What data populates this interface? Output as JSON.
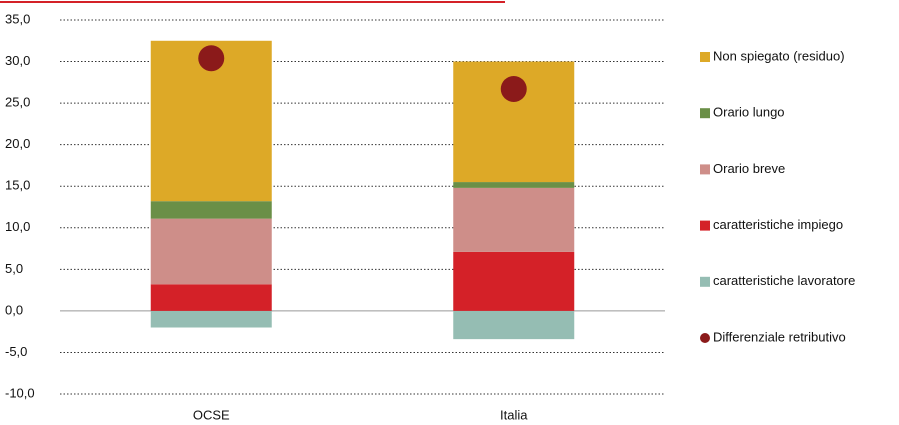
{
  "chart_data": {
    "type": "bar",
    "stacked": true,
    "categories": [
      "OCSE",
      "Italia"
    ],
    "series": [
      {
        "name": "caratteristiche lavoratore",
        "color": "#95bdb3",
        "values": [
          -2.0,
          -3.4
        ]
      },
      {
        "name": "caratteristiche impiego",
        "color": "#d42128",
        "values": [
          3.2,
          7.1
        ]
      },
      {
        "name": "Orario breve",
        "color": "#ce8e89",
        "values": [
          7.9,
          7.7
        ]
      },
      {
        "name": "Orario lungo",
        "color": "#6a8f47",
        "values": [
          2.1,
          0.7
        ]
      },
      {
        "name": "Non spiegato (residuo)",
        "color": "#dda927",
        "values": [
          19.3,
          14.5
        ]
      }
    ],
    "dots": {
      "name": "Differenziale retributivo",
      "color": "#8b1a1a",
      "values": [
        30.4,
        26.7
      ]
    },
    "ylim": [
      -10,
      35
    ],
    "yticks": [
      {
        "value": -10,
        "label": "-10,0"
      },
      {
        "value": -5,
        "label": "-5,0"
      },
      {
        "value": 0,
        "label": "0,0"
      },
      {
        "value": 5,
        "label": "5,0"
      },
      {
        "value": 10,
        "label": "10,0"
      },
      {
        "value": 15,
        "label": "15,0"
      },
      {
        "value": 20,
        "label": "20,0"
      },
      {
        "value": 25,
        "label": "25,0"
      },
      {
        "value": 30,
        "label": "30,0"
      },
      {
        "value": 35,
        "label": "35,0"
      }
    ],
    "grid": true,
    "legend": "right"
  }
}
